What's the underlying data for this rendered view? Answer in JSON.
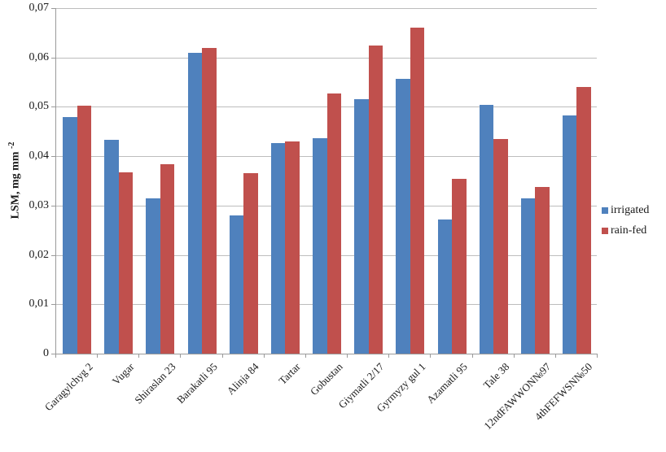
{
  "chart_data": {
    "type": "bar",
    "title": "",
    "ylabel": {
      "main": "LSM, mg mm ",
      "sup": "-2"
    },
    "xlabel": "",
    "y_axis": {
      "min": 0,
      "max": 0.07,
      "tick_step": 0.01,
      "tick_labels": [
        "0",
        "0,01",
        "0,02",
        "0,03",
        "0,04",
        "0,05",
        "0,06",
        "0,07"
      ],
      "decimal_separator": ","
    },
    "grid": true,
    "legend_position": "right",
    "categories": [
      "Garagylchyg 2",
      "Vugar",
      "Shiraslan 23",
      "Barakatli 95",
      "Alinja 84",
      "Tartar",
      "Gobustan",
      "Giymatli 2/17",
      "Gyrmyzy gul 1",
      "Azamatli 95",
      "Tale 38",
      "12ndFAWWON№97",
      "4thFEFWSN№50"
    ],
    "series": [
      {
        "name": "irrigated",
        "color": "#4F81BD",
        "values": [
          0.048,
          0.0433,
          0.0314,
          0.061,
          0.028,
          0.0426,
          0.0436,
          0.0516,
          0.0556,
          0.0272,
          0.0504,
          0.0314,
          0.0483
        ]
      },
      {
        "name": "rain-fed",
        "color": "#C0504D",
        "values": [
          0.0502,
          0.0368,
          0.0384,
          0.062,
          0.0365,
          0.043,
          0.0527,
          0.0624,
          0.066,
          0.0355,
          0.0435,
          0.0338,
          0.054
        ]
      }
    ]
  },
  "colors": {
    "gridline": "#bdbdbd",
    "axis": "#9a9a9a",
    "text": "#1a1a1a",
    "background": "#ffffff"
  }
}
